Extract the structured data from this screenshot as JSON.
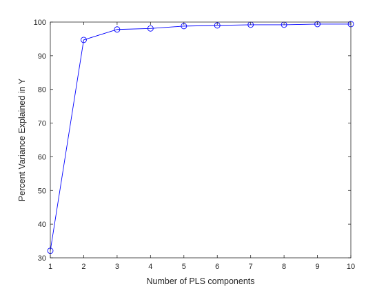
{
  "chart_data": {
    "type": "line",
    "title": "",
    "xlabel": "Number of PLS components",
    "ylabel": "Percent Variance Explained in Y",
    "xlim": [
      1,
      10
    ],
    "ylim": [
      30,
      100
    ],
    "xticks": [
      "1",
      "2",
      "3",
      "4",
      "5",
      "6",
      "7",
      "8",
      "9",
      "10"
    ],
    "yticks": [
      "30",
      "40",
      "50",
      "60",
      "70",
      "80",
      "90",
      "100"
    ],
    "grid": false,
    "legend": "none",
    "marker": "circle",
    "line_color": "#0000ff",
    "series": [
      {
        "x": [
          1,
          2,
          3,
          4,
          5,
          6,
          7,
          8,
          9,
          10
        ],
        "values": [
          32.1,
          94.7,
          97.8,
          98.1,
          98.8,
          99.0,
          99.2,
          99.2,
          99.4,
          99.4
        ]
      }
    ]
  }
}
